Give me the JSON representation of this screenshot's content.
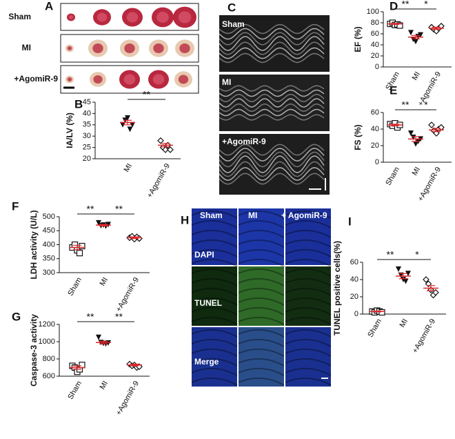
{
  "images": {
    "A": {
      "label": "A",
      "rows": [
        "Sham",
        "MI",
        "+AgomiR-9"
      ]
    },
    "C": {
      "label": "C",
      "rows": [
        "Sham",
        "MI",
        "+AgomiR-9"
      ]
    },
    "H": {
      "label": "H",
      "columns": [
        "Sham",
        "MI",
        "+ AgomiR-9"
      ],
      "rows": [
        "DAPI",
        "TUNEL",
        "Merge"
      ]
    }
  },
  "chart_data": [
    {
      "type": "dot",
      "label": "B",
      "ylabel": "IA/LV (%)",
      "categories": [
        "MI",
        "+AgomiR-9"
      ],
      "markers": [
        "triangle",
        "diamond"
      ],
      "points": [
        [
          35,
          37,
          38,
          33,
          35
        ],
        [
          28,
          25,
          24,
          26,
          24
        ]
      ],
      "means": [
        36,
        26
      ],
      "errors": [
        1,
        0.8
      ],
      "annotations": [
        "**"
      ],
      "ylim": [
        20,
        45
      ],
      "yticks": [
        20,
        25,
        30,
        35,
        40,
        45
      ],
      "mean_color": "#e0262b"
    },
    {
      "type": "dot",
      "label": "D",
      "ylabel": "EF (%)",
      "categories": [
        "Sham",
        "MI",
        "+AgomiR-9"
      ],
      "markers": [
        "square",
        "triangle",
        "diamond"
      ],
      "points": [
        [
          78,
          80,
          76,
          77,
          75
        ],
        [
          62,
          50,
          46,
          55,
          58
        ],
        [
          72,
          68,
          65,
          70,
          74
        ]
      ],
      "means": [
        78,
        54,
        70
      ],
      "errors": [
        1,
        3,
        2
      ],
      "annotations": [
        "**",
        "*"
      ],
      "ylim": [
        0,
        100
      ],
      "yticks": [
        0,
        20,
        40,
        60,
        80,
        100
      ],
      "mean_color": "#e0262b"
    },
    {
      "type": "dot",
      "label": "E",
      "ylabel": "FS (%)",
      "categories": [
        "Sham",
        "MI",
        "+AgomiR-9"
      ],
      "markers": [
        "square",
        "triangle",
        "diamond"
      ],
      "points": [
        [
          46,
          44,
          47,
          42,
          45
        ],
        [
          35,
          30,
          22,
          25,
          28
        ],
        [
          45,
          38,
          35,
          40,
          42
        ]
      ],
      "means": [
        45,
        28,
        39
      ],
      "errors": [
        1,
        3,
        2
      ],
      "annotations": [
        "**",
        "*"
      ],
      "ylim": [
        0,
        60
      ],
      "yticks": [
        0,
        20,
        40,
        60
      ],
      "mean_color": "#e0262b"
    },
    {
      "type": "dot",
      "label": "F",
      "ylabel": "LDH activity (U/L)",
      "categories": [
        "Sham",
        "MI",
        "+AgomiR-9"
      ],
      "markers": [
        "square",
        "triangle",
        "diamond"
      ],
      "points": [
        [
          390,
          400,
          380,
          370,
          395
        ],
        [
          478,
          468,
          470,
          466,
          472
        ],
        [
          425,
          430,
          420,
          428,
          422
        ]
      ],
      "means": [
        390,
        470,
        425
      ],
      "errors": [
        8,
        3,
        3
      ],
      "annotations": [
        "**",
        "**"
      ],
      "ylim": [
        300,
        500
      ],
      "yticks": [
        300,
        350,
        400,
        450,
        500
      ],
      "mean_color": "#e0262b"
    },
    {
      "type": "dot",
      "label": "G",
      "ylabel": "Caspase-3 activity",
      "categories": [
        "Sham",
        "MI",
        "+AgomiR-9"
      ],
      "markers": [
        "square",
        "triangle",
        "diamond"
      ],
      "points": [
        [
          720,
          700,
          650,
          680,
          730
        ],
        [
          1050,
          990,
          980,
          975,
          985
        ],
        [
          740,
          720,
          730,
          700,
          710
        ]
      ],
      "means": [
        700,
        990,
        730
      ],
      "errors": [
        20,
        15,
        10
      ],
      "annotations": [
        "**",
        "**"
      ],
      "ylim": [
        600,
        1200
      ],
      "yticks": [
        600,
        800,
        1000,
        1200
      ],
      "mean_color": "#e0262b"
    },
    {
      "type": "dot",
      "label": "I",
      "ylabel": "TUNEL positive cells(%)",
      "categories": [
        "Sham",
        "MI",
        "+AgomiR-9"
      ],
      "markers": [
        "square",
        "triangle",
        "diamond"
      ],
      "points": [
        [
          3,
          2,
          4,
          3,
          2
        ],
        [
          52,
          45,
          40,
          38,
          47
        ],
        [
          40,
          35,
          28,
          22,
          25
        ]
      ],
      "means": [
        3,
        44,
        30
      ],
      "errors": [
        0.5,
        3,
        3
      ],
      "annotations": [
        "**",
        "*"
      ],
      "ylim": [
        0,
        60
      ],
      "yticks": [
        0,
        20,
        40,
        60
      ],
      "mean_color": "#e0262b"
    }
  ]
}
